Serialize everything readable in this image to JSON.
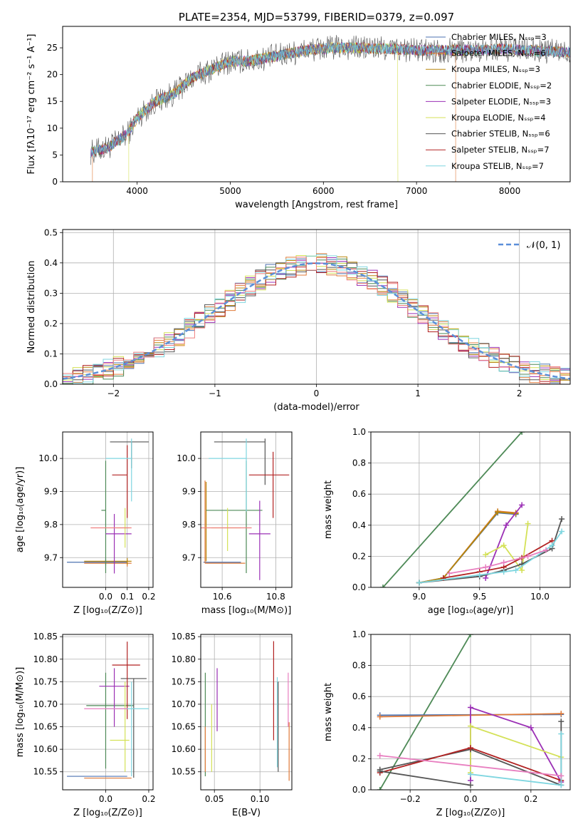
{
  "colors": {
    "chabrier_miles": "#4c72b0",
    "salpeter_miles": "#e07b39",
    "kroupa_miles": "#b8860b",
    "chabrier_elodie": "#4e8a57",
    "salpeter_elodie": "#9b30b5",
    "kroupa_elodie": "#d4e157",
    "chabrier_stelib": "#555555",
    "salpeter_stelib": "#b22222",
    "kroupa_stelib": "#7fd6e0",
    "salmon": "#f08080",
    "pink": "#e87fc0",
    "gaussian": "#5b8fd9"
  },
  "chart_data": [
    {
      "id": "spectrum",
      "type": "line",
      "title": "PLATE=2354, MJD=53799, FIBERID=0379, z=0.097",
      "xlabel": "wavelength [Angstrom, rest frame]",
      "ylabel": "Flux [fλ10⁻¹⁷ erg cm⁻² s⁻¹ A⁻¹]",
      "xlim": [
        3200,
        8650
      ],
      "ylim": [
        0,
        29
      ],
      "xticks": [
        "4000",
        "5000",
        "6000",
        "7000",
        "8000"
      ],
      "yticks": [
        "0",
        "5",
        "10",
        "15",
        "20",
        "25"
      ],
      "legend_position": "top-right",
      "legend": [
        "Chabrier MILES, Nₛₛₚ=3",
        "Salpeter MILES, Nₛₛₚ=6",
        "Kroupa MILES, Nₛₛₚ=3",
        "Chabrier ELODIE, Nₛₛₚ=2",
        "Salpeter ELODIE, Nₛₛₚ=3",
        "Kroupa ELODIE, Nₛₛₚ=4",
        "Chabrier STELIB, Nₛₛₚ=6",
        "Salpeter STELIB, Nₛₛₚ=7",
        "Kroupa STELIB, Nₛₛₚ=7"
      ],
      "continuum": {
        "x": [
          3500,
          3700,
          3900,
          4000,
          4200,
          4400,
          4600,
          4800,
          5000,
          5200,
          5500,
          5800,
          6100,
          6400,
          6700,
          7000,
          7300,
          7600,
          7900,
          8200,
          8600
        ],
        "y": [
          5.5,
          6.5,
          9,
          12,
          15,
          16.5,
          19.5,
          21,
          22.5,
          22.5,
          23.5,
          24.5,
          25,
          25,
          24.8,
          24.5,
          24.5,
          24.6,
          24.8,
          24.5,
          24.2
        ]
      },
      "noise_amplitude": 1.5,
      "cutoffs": [
        {
          "model": "salpeter_miles",
          "x": 3520
        },
        {
          "model": "salpeter_miles",
          "x": 7420
        },
        {
          "model": "kroupa_elodie",
          "x": 3910
        },
        {
          "model": "kroupa_elodie",
          "x": 6800
        }
      ]
    },
    {
      "id": "residuals",
      "type": "histogram",
      "xlabel": "(data-model)/error",
      "ylabel": "Normed distribution",
      "xlim": [
        -2.5,
        2.5
      ],
      "ylim": [
        0,
        0.51
      ],
      "xticks": [
        "−2",
        "−1",
        "0",
        "1",
        "2"
      ],
      "yticks": [
        "0.0",
        "0.1",
        "0.2",
        "0.3",
        "0.4",
        "0.5"
      ],
      "bin_width": 0.1,
      "legend": [
        "𝒩(0, 1)"
      ],
      "legend_position": "top-right",
      "gaussian": {
        "mean": 0,
        "sigma": 1
      }
    },
    {
      "id": "age_vs_Z",
      "type": "errorbar",
      "xlabel": "Z [log₁₀(Z/Z⊙)]",
      "ylabel": "age  [log₁₀(age/yr)]",
      "xlim": [
        -0.2,
        0.22
      ],
      "ylim": [
        9.61,
        10.08
      ],
      "xticks": [
        "0.0",
        "0.1",
        "0.2"
      ],
      "yticks": [
        "9.7",
        "9.8",
        "9.9",
        "10.0"
      ],
      "points": [
        {
          "model": "chabrier_miles",
          "x": 0.0,
          "xerr": [
            0.18,
            0.1
          ],
          "y": 9.686,
          "yerr": [
            0.01,
            0.01
          ]
        },
        {
          "model": "salpeter_miles",
          "x": 0.1,
          "xerr": [
            0.2,
            0.02
          ],
          "y": 9.683,
          "yerr": [
            0.01,
            0.01
          ]
        },
        {
          "model": "kroupa_miles",
          "x": 0.1,
          "xerr": [
            0.2,
            0.02
          ],
          "y": 9.689,
          "yerr": [
            0.01,
            0.01
          ]
        },
        {
          "model": "chabrier_elodie",
          "x": 0.0,
          "xerr": [
            0.02,
            0.0
          ],
          "y": 9.843,
          "yerr": [
            0.19,
            0.15
          ]
        },
        {
          "model": "salpeter_elodie",
          "x": 0.04,
          "xerr": [
            0.04,
            0.08
          ],
          "y": 9.772,
          "yerr": [
            0.12,
            0.06
          ]
        },
        {
          "model": "kroupa_elodie",
          "x": 0.09,
          "xerr": [
            0.04,
            0.02
          ],
          "y": 9.79,
          "yerr": [
            0.06,
            0.06
          ]
        },
        {
          "model": "chabrier_stelib",
          "x": 0.12,
          "xerr": [
            0.1,
            0.08
          ],
          "y": 10.05,
          "yerr": [
            0.08,
            0.0
          ]
        },
        {
          "model": "salpeter_stelib",
          "x": 0.1,
          "xerr": [
            0.07,
            0.0
          ],
          "y": 9.95,
          "yerr": [
            0.13,
            0.09
          ]
        },
        {
          "model": "kroupa_stelib",
          "x": 0.12,
          "xerr": [
            0.12,
            0.0
          ],
          "y": 10.0,
          "yerr": [
            0.13,
            0.06
          ]
        },
        {
          "model": "salmon",
          "x": 0.03,
          "xerr": [
            0.1,
            0.09
          ],
          "y": 9.79,
          "yerr": [
            0.0,
            0.0
          ]
        }
      ]
    },
    {
      "id": "age_vs_mass",
      "type": "errorbar",
      "xlabel": "mass [log₁₀(M/M⊙)]",
      "ylabel": "",
      "xlim": [
        10.52,
        10.86
      ],
      "ylim": [
        9.61,
        10.08
      ],
      "xticks": [
        "10.6",
        "10.8"
      ],
      "yticks": [
        "9.7",
        "9.8",
        "9.9",
        "10.0"
      ],
      "points": [
        {
          "model": "chabrier_miles",
          "x": 10.54,
          "xerr": [
            0.01,
            0.13
          ],
          "y": 9.686,
          "yerr": [
            0.0,
            0.0
          ]
        },
        {
          "model": "salpeter_miles",
          "x": 10.536,
          "xerr": [
            0.0,
            0.15
          ],
          "y": 9.683,
          "yerr": [
            0.0,
            0.25
          ]
        },
        {
          "model": "kroupa_miles",
          "x": 10.54,
          "xerr": [
            0.0,
            0.0
          ],
          "y": 9.689,
          "yerr": [
            0.0,
            0.24
          ]
        },
        {
          "model": "chabrier_elodie",
          "x": 10.69,
          "xerr": [
            0.15,
            0.06
          ],
          "y": 9.843,
          "yerr": [
            0.19,
            0.15
          ]
        },
        {
          "model": "salpeter_elodie",
          "x": 10.74,
          "xerr": [
            0.04,
            0.04
          ],
          "y": 9.772,
          "yerr": [
            0.14,
            0.1
          ]
        },
        {
          "model": "kroupa_elodie",
          "x": 10.62,
          "xerr": [
            0.06,
            0.05
          ],
          "y": 9.79,
          "yerr": [
            0.07,
            0.06
          ]
        },
        {
          "model": "chabrier_stelib",
          "x": 10.76,
          "xerr": [
            0.19,
            0.0
          ],
          "y": 10.05,
          "yerr": [
            0.13,
            0.01
          ]
        },
        {
          "model": "salpeter_stelib",
          "x": 10.79,
          "xerr": [
            0.09,
            0.06
          ],
          "y": 9.95,
          "yerr": [
            0.13,
            0.07
          ]
        },
        {
          "model": "kroupa_stelib",
          "x": 10.69,
          "xerr": [
            0.14,
            0.0
          ],
          "y": 10.0,
          "yerr": [
            0.16,
            0.06
          ]
        },
        {
          "model": "salmon",
          "x": 10.6,
          "xerr": [
            0.08,
            0.11
          ],
          "y": 9.79,
          "yerr": [
            0.0,
            0.0
          ]
        }
      ]
    },
    {
      "id": "massweight_vs_age",
      "type": "line",
      "xlabel": "age  [log₁₀(age/yr)]",
      "ylabel": "mass weight",
      "xlim": [
        8.6,
        10.25
      ],
      "ylim": [
        0,
        1.0
      ],
      "xticks": [
        "9.0",
        "9.5",
        "10.0"
      ],
      "yticks": [
        "0.0",
        "0.2",
        "0.4",
        "0.6",
        "0.8",
        "1.0"
      ],
      "series": [
        {
          "model": "chabrier_elodie",
          "x": [
            8.7,
            9.85
          ],
          "y": [
            0.0,
            1.0
          ]
        },
        {
          "model": "salpeter_miles",
          "x": [
            9.0,
            9.2,
            9.65,
            9.8
          ],
          "y": [
            0.03,
            0.06,
            0.49,
            0.48
          ]
        },
        {
          "model": "chabrier_miles",
          "x": [
            9.0,
            9.2,
            9.65,
            9.8
          ],
          "y": [
            0.03,
            0.06,
            0.48,
            0.47
          ]
        },
        {
          "model": "kroupa_miles",
          "x": [
            9.0,
            9.2,
            9.65,
            9.8
          ],
          "y": [
            0.03,
            0.06,
            0.485,
            0.475
          ]
        },
        {
          "model": "salpeter_elodie",
          "x": [
            9.55,
            9.72,
            9.85
          ],
          "y": [
            0.06,
            0.4,
            0.53
          ]
        },
        {
          "model": "kroupa_elodie",
          "x": [
            9.55,
            9.7,
            9.85,
            9.9
          ],
          "y": [
            0.21,
            0.27,
            0.11,
            0.41
          ]
        },
        {
          "model": "chabrier_stelib",
          "x": [
            9.0,
            9.5,
            9.7,
            9.85,
            10.1,
            10.18
          ],
          "y": [
            0.03,
            0.07,
            0.11,
            0.15,
            0.25,
            0.44
          ]
        },
        {
          "model": "salpeter_stelib",
          "x": [
            9.2,
            9.5,
            9.7,
            9.85,
            10.1
          ],
          "y": [
            0.06,
            0.1,
            0.13,
            0.19,
            0.3
          ]
        },
        {
          "model": "kroupa_stelib",
          "x": [
            9.0,
            9.5,
            9.7,
            9.8,
            10.1,
            10.18
          ],
          "y": [
            0.03,
            0.08,
            0.1,
            0.11,
            0.27,
            0.36
          ]
        },
        {
          "model": "pink",
          "x": [
            9.25,
            9.55,
            9.7,
            9.9,
            10.05
          ],
          "y": [
            0.09,
            0.13,
            0.16,
            0.2,
            0.24
          ]
        }
      ]
    },
    {
      "id": "mass_vs_Z",
      "type": "errorbar",
      "xlabel": "Z [log₁₀(Z/Z⊙)]",
      "ylabel": "mass [log₁₀(M/M⊙)]",
      "xlim": [
        -0.2,
        0.22
      ],
      "ylim": [
        10.51,
        10.855
      ],
      "xticks": [
        "0.0",
        "0.2"
      ],
      "yticks": [
        "10.55",
        "10.60",
        "10.65",
        "10.70",
        "10.75",
        "10.80",
        "10.85"
      ],
      "points": [
        {
          "model": "chabrier_miles",
          "x": 0.0,
          "xerr": [
            0.18,
            0.1
          ],
          "y": 10.54,
          "yerr": [
            0.0,
            0.0
          ]
        },
        {
          "model": "salpeter_miles",
          "x": 0.1,
          "xerr": [
            0.2,
            0.02
          ],
          "y": 10.536,
          "yerr": [
            0.0,
            0.0
          ]
        },
        {
          "model": "chabrier_elodie",
          "x": 0.0,
          "xerr": [
            0.09,
            0.13
          ],
          "y": 10.697,
          "yerr": [
            0.14,
            0.073
          ]
        },
        {
          "model": "salpeter_elodie",
          "x": 0.04,
          "xerr": [
            0.07,
            0.07
          ],
          "y": 10.74,
          "yerr": [
            0.09,
            0.04
          ]
        },
        {
          "model": "kroupa_elodie",
          "x": 0.09,
          "xerr": [
            0.07,
            0.02
          ],
          "y": 10.62,
          "yerr": [
            0.07,
            0.13
          ]
        },
        {
          "model": "chabrier_stelib",
          "x": 0.13,
          "xerr": [
            0.06,
            0.06
          ],
          "y": 10.757,
          "yerr": [
            0.22,
            0.0
          ]
        },
        {
          "model": "salpeter_stelib",
          "x": 0.1,
          "xerr": [
            0.07,
            0.06
          ],
          "y": 10.787,
          "yerr": [
            0.12,
            0.052
          ]
        },
        {
          "model": "kroupa_stelib",
          "x": 0.12,
          "xerr": [
            0.12,
            0.08
          ],
          "y": 10.69,
          "yerr": [
            0.15,
            0.06
          ]
        },
        {
          "model": "pink",
          "x": 0.0,
          "xerr": [
            0.1,
            0.1
          ],
          "y": 10.69,
          "yerr": [
            0.0,
            0.0
          ]
        }
      ]
    },
    {
      "id": "mass_vs_ebv",
      "type": "errorbar",
      "xlabel": "E(B-V)",
      "ylabel": "",
      "xlim": [
        0.035,
        0.135
      ],
      "ylim": [
        10.51,
        10.855
      ],
      "xticks": [
        "0.05",
        "0.10"
      ],
      "yticks": [
        "10.55",
        "10.60",
        "10.65",
        "10.70",
        "10.75",
        "10.80",
        "10.85"
      ],
      "points": [
        {
          "model": "chabrier_elodie",
          "x": 0.04,
          "xerr": [
            0,
            0
          ],
          "y": 10.68,
          "yerr": [
            0.14,
            0.09
          ]
        },
        {
          "model": "salpeter_miles",
          "x": 0.04,
          "xerr": [
            0,
            0
          ],
          "y": 10.6,
          "yerr": [
            0.05,
            0.05
          ]
        },
        {
          "model": "kroupa_elodie",
          "x": 0.047,
          "xerr": [
            0,
            0
          ],
          "y": 10.62,
          "yerr": [
            0.07,
            0.08
          ]
        },
        {
          "model": "salpeter_elodie",
          "x": 0.053,
          "xerr": [
            0,
            0
          ],
          "y": 10.71,
          "yerr": [
            0.07,
            0.07
          ]
        },
        {
          "model": "salpeter_stelib",
          "x": 0.115,
          "xerr": [
            0,
            0
          ],
          "y": 10.73,
          "yerr": [
            0.11,
            0.11
          ]
        },
        {
          "model": "kroupa_stelib",
          "x": 0.119,
          "xerr": [
            0,
            0
          ],
          "y": 10.66,
          "yerr": [
            0.1,
            0.1
          ]
        },
        {
          "model": "chabrier_stelib",
          "x": 0.12,
          "xerr": [
            0,
            0
          ],
          "y": 10.65,
          "yerr": [
            0.1,
            0.1
          ]
        },
        {
          "model": "pink",
          "x": 0.131,
          "xerr": [
            0,
            0
          ],
          "y": 10.71,
          "yerr": [
            0.06,
            0.06
          ]
        },
        {
          "model": "salpeter_miles",
          "x": 0.132,
          "xerr": [
            0,
            0
          ],
          "y": 10.59,
          "yerr": [
            0.06,
            0.07
          ]
        }
      ]
    },
    {
      "id": "massweight_vs_Z",
      "type": "line",
      "xlabel": "Z [log₁₀(Z/Z⊙)]",
      "ylabel": "mass weight",
      "xlim": [
        -0.33,
        0.33
      ],
      "ylim": [
        0,
        1.0
      ],
      "xticks": [
        "−0.2",
        "0.0",
        "0.2"
      ],
      "yticks": [
        "0.0",
        "0.2",
        "0.4",
        "0.6",
        "0.8",
        "1.0"
      ],
      "series": [
        {
          "model": "chabrier_elodie",
          "x": [
            -0.3,
            0.0
          ],
          "y": [
            0.0,
            1.0
          ]
        },
        {
          "model": "chabrier_miles",
          "x": [
            -0.3,
            0.3
          ],
          "y": [
            0.48,
            0.485
          ]
        },
        {
          "model": "salpeter_miles",
          "x": [
            -0.3,
            0.3
          ],
          "y": [
            0.47,
            0.49
          ]
        },
        {
          "model": "salpeter_elodie",
          "x": [
            0.0,
            0.0,
            0.2,
            0.3
          ],
          "y": [
            0.06,
            0.53,
            0.4,
            0.05
          ]
        },
        {
          "model": "kroupa_elodie",
          "x": [
            0.0,
            0.0,
            0.3
          ],
          "y": [
            0.11,
            0.41,
            0.21
          ]
        },
        {
          "model": "chabrier_stelib",
          "x": [
            -0.3,
            0.0,
            0.3,
            0.3
          ],
          "y": [
            0.13,
            0.26,
            0.03,
            0.44
          ]
        },
        {
          "model": "salpeter_stelib",
          "x": [
            -0.3,
            0.0,
            0.3
          ],
          "y": [
            0.11,
            0.27,
            0.06
          ]
        },
        {
          "model": "kroupa_stelib",
          "x": [
            0.0,
            0.3,
            0.3
          ],
          "y": [
            0.1,
            0.03,
            0.36
          ]
        },
        {
          "model": "pink",
          "x": [
            -0.3,
            0.3
          ],
          "y": [
            0.22,
            0.09
          ]
        },
        {
          "model": "chabrier_stelib",
          "x": [
            -0.3,
            0.0
          ],
          "y": [
            0.12,
            0.03
          ]
        }
      ]
    }
  ]
}
